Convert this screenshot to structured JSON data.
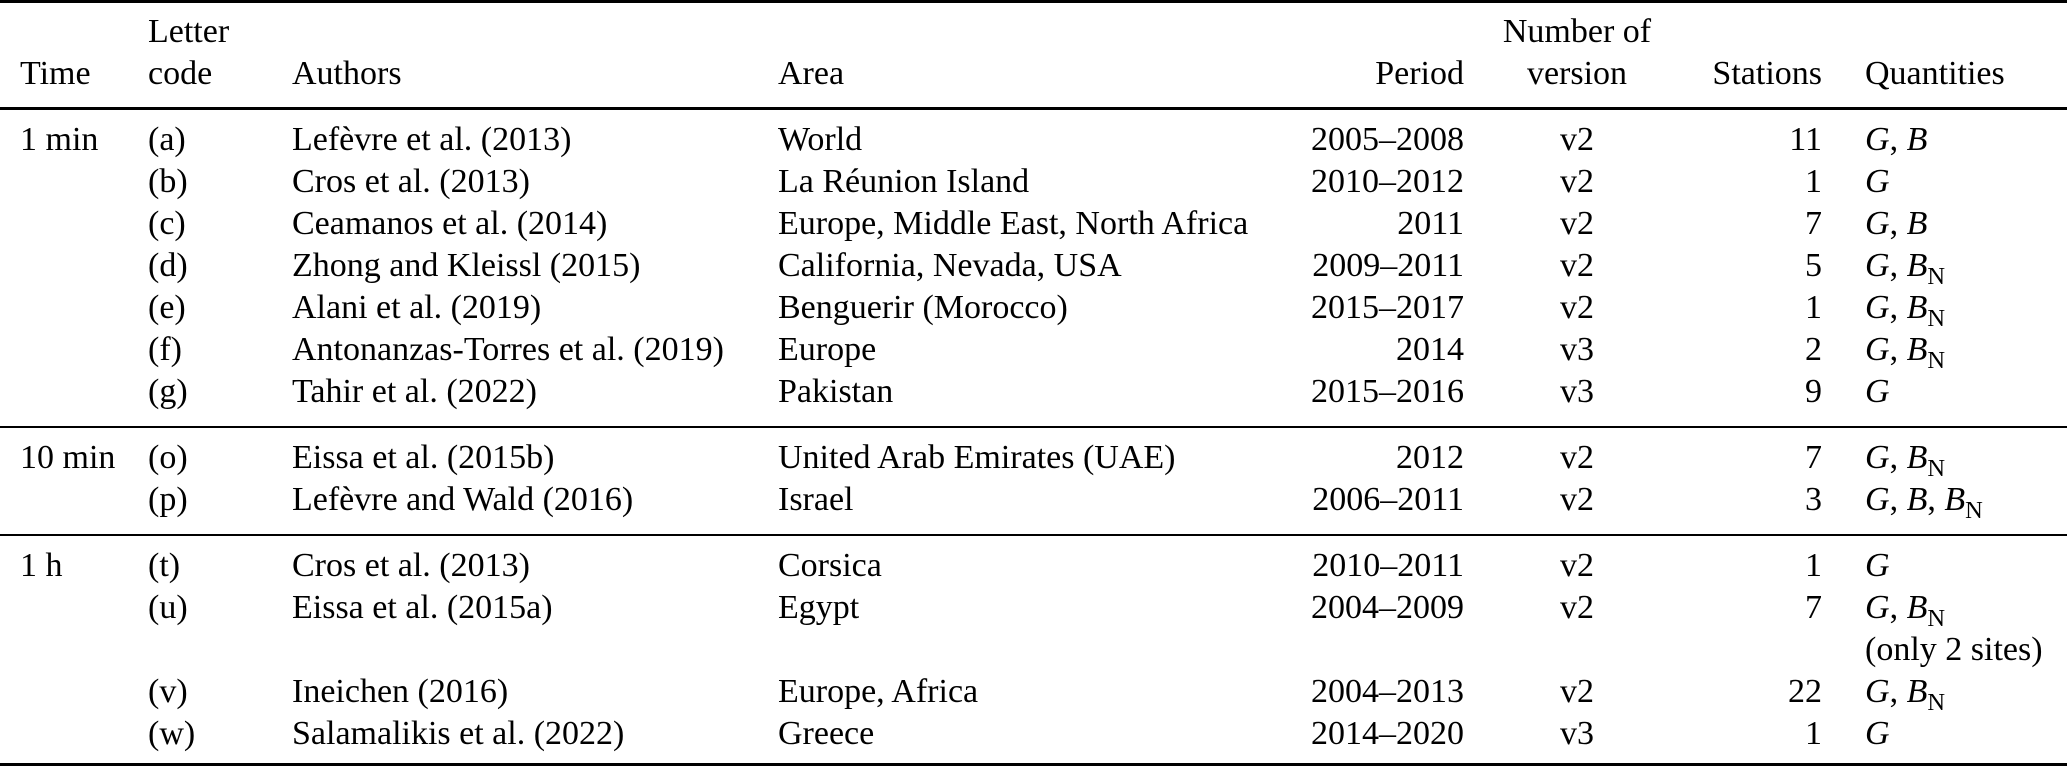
{
  "table": {
    "header": {
      "line1": {
        "letter": "Letter",
        "number_of": "Number of"
      },
      "line2": {
        "time": "Time",
        "code": "code",
        "authors": "Authors",
        "area": "Area",
        "period": "Period",
        "version": "version",
        "stations": "Stations",
        "quantities": "Quantities"
      }
    },
    "groups": [
      {
        "time": "1 min",
        "rows": [
          {
            "code": "(a)",
            "authors": "Lefèvre et al. (2013)",
            "area": "World",
            "period": "2005–2008",
            "version": "v2",
            "stations": "11",
            "quantities": "G, B"
          },
          {
            "code": "(b)",
            "authors": "Cros et al. (2013)",
            "area": "La Réunion Island",
            "period": "2010–2012",
            "version": "v2",
            "stations": "1",
            "quantities": "G"
          },
          {
            "code": "(c)",
            "authors": "Ceamanos et al. (2014)",
            "area": "Europe, Middle East, North Africa",
            "period": "2011",
            "version": "v2",
            "stations": "7",
            "quantities": "G, B"
          },
          {
            "code": "(d)",
            "authors": "Zhong and Kleissl (2015)",
            "area": "California, Nevada, USA",
            "period": "2009–2011",
            "version": "v2",
            "stations": "5",
            "quantities": "G, B_N"
          },
          {
            "code": "(e)",
            "authors": "Alani et al. (2019)",
            "area": "Benguerir (Morocco)",
            "period": "2015–2017",
            "version": "v2",
            "stations": "1",
            "quantities": "G, B_N"
          },
          {
            "code": "(f)",
            "authors": "Antonanzas-Torres et al. (2019)",
            "area": "Europe",
            "period": "2014",
            "version": "v3",
            "stations": "2",
            "quantities": "G, B_N"
          },
          {
            "code": "(g)",
            "authors": "Tahir et al. (2022)",
            "area": "Pakistan",
            "period": "2015–2016",
            "version": "v3",
            "stations": "9",
            "quantities": "G"
          }
        ]
      },
      {
        "time": "10 min",
        "rows": [
          {
            "code": "(o)",
            "authors": "Eissa et al. (2015b)",
            "area": "United Arab Emirates (UAE)",
            "period": "2012",
            "version": "v2",
            "stations": "7",
            "quantities": "G, B_N"
          },
          {
            "code": "(p)",
            "authors": "Lefèvre and Wald (2016)",
            "area": "Israel",
            "period": "2006–2011",
            "version": "v2",
            "stations": "3",
            "quantities": "G, B, B_N"
          }
        ]
      },
      {
        "time": "1 h",
        "rows": [
          {
            "code": "(t)",
            "authors": "Cros et al. (2013)",
            "area": "Corsica",
            "period": "2010–2011",
            "version": "v2",
            "stations": "1",
            "quantities": "G"
          },
          {
            "code": "(u)",
            "authors": "Eissa et al. (2015a)",
            "area": "Egypt",
            "period": "2004–2009",
            "version": "v2",
            "stations": "7",
            "quantities": "G, B_N",
            "note": "(only 2 sites)"
          },
          {
            "code": "(v)",
            "authors": "Ineichen (2016)",
            "area": "Europe, Africa",
            "period": "2004–2013",
            "version": "v2",
            "stations": "22",
            "quantities": "G, B_N"
          },
          {
            "code": "(w)",
            "authors": "Salamalikis et al. (2022)",
            "area": "Greece",
            "period": "2014–2020",
            "version": "v3",
            "stations": "1",
            "quantities": "G"
          }
        ]
      }
    ]
  }
}
